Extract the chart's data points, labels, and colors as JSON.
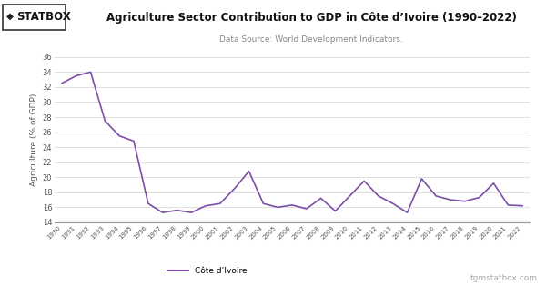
{
  "title": "Agriculture Sector Contribution to GDP in Côte d’Ivoire (1990–2022)",
  "subtitle": "Data Source: World Development Indicators.",
  "ylabel": "Agriculture (% of GDP)",
  "line_color": "#7B4FA6",
  "legend_label": "Côte d’Ivoire",
  "watermark": "tgmstatbox.com",
  "logo_text": "STATBOX",
  "background_color": "#ffffff",
  "grid_color": "#e0e0e0",
  "ylim": [
    14,
    36
  ],
  "yticks": [
    14,
    16,
    18,
    20,
    22,
    24,
    26,
    28,
    30,
    32,
    34,
    36
  ],
  "years": [
    1990,
    1991,
    1992,
    1993,
    1994,
    1995,
    1996,
    1997,
    1998,
    1999,
    2000,
    2001,
    2002,
    2003,
    2004,
    2005,
    2006,
    2007,
    2008,
    2009,
    2010,
    2011,
    2012,
    2013,
    2014,
    2015,
    2016,
    2017,
    2018,
    2019,
    2020,
    2021,
    2022
  ],
  "values": [
    32.5,
    33.5,
    34.0,
    27.5,
    25.5,
    24.8,
    16.5,
    15.3,
    15.6,
    15.3,
    16.2,
    16.5,
    18.5,
    20.8,
    16.5,
    16.0,
    16.3,
    15.8,
    17.2,
    15.5,
    17.5,
    19.5,
    17.5,
    16.5,
    15.3,
    19.8,
    17.5,
    17.0,
    16.8,
    17.3,
    19.2,
    16.3,
    16.2
  ]
}
